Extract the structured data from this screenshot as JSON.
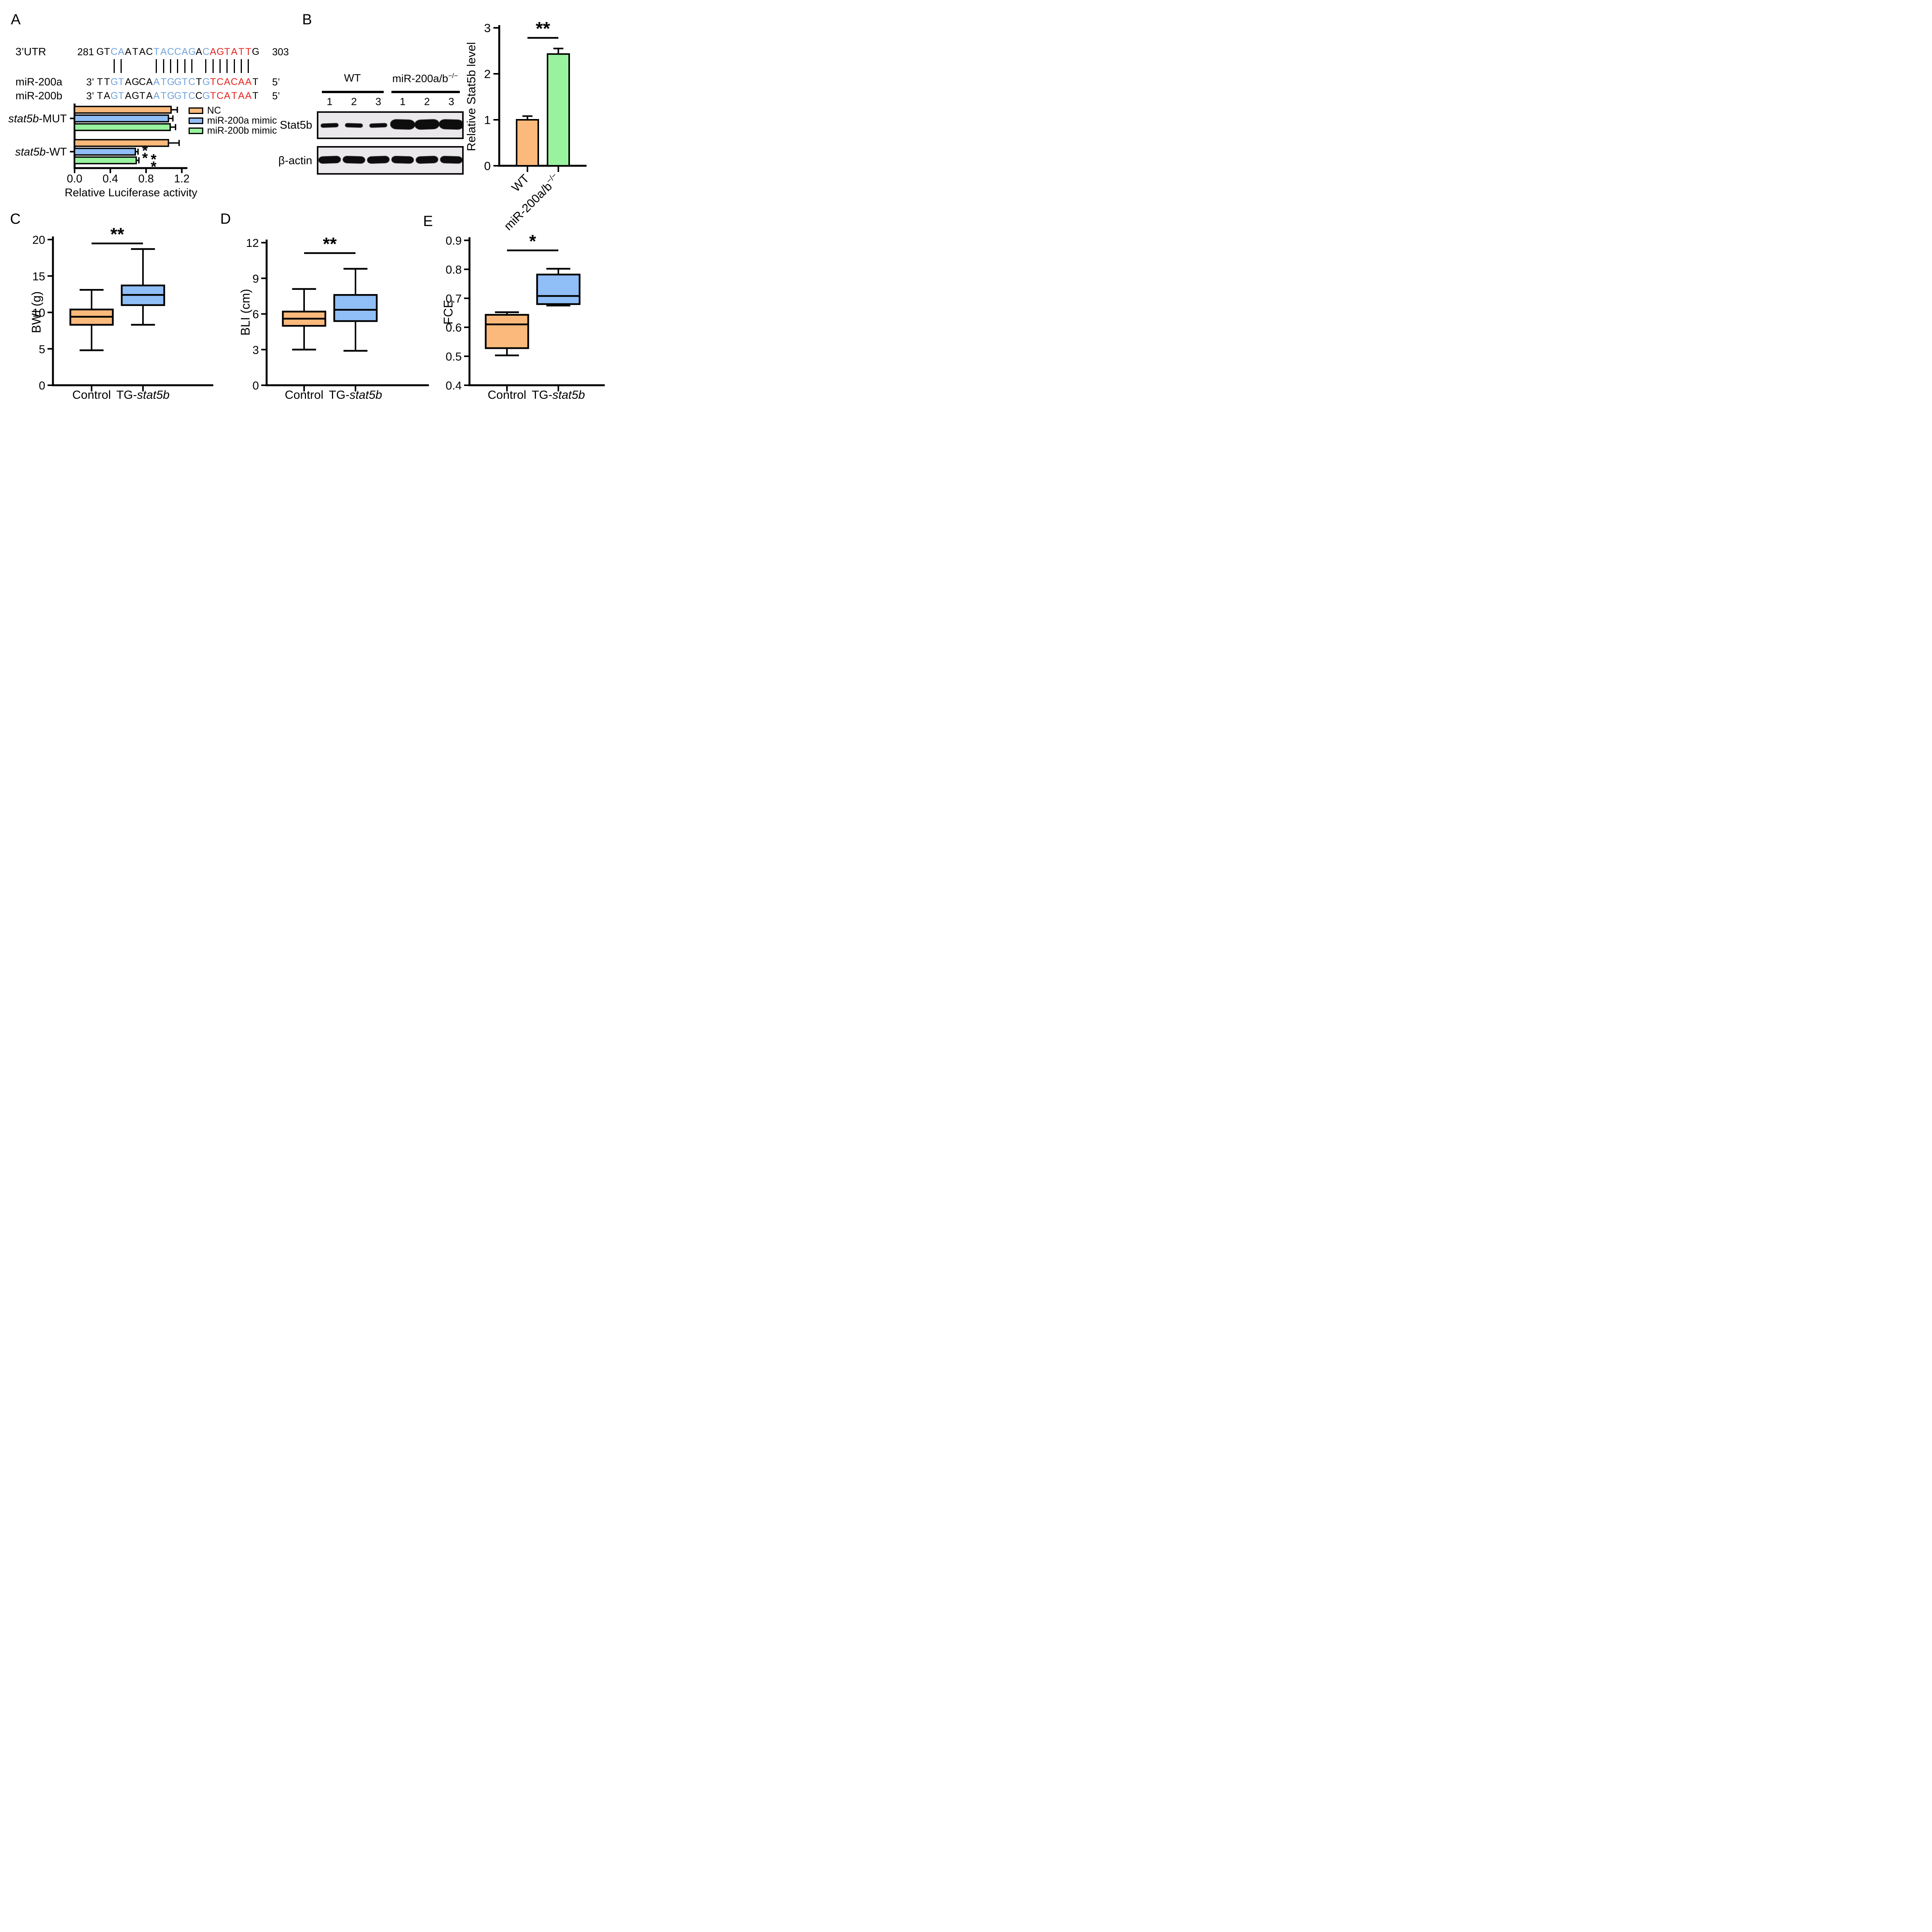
{
  "panel_labels": {
    "A": "A",
    "B": "B",
    "C": "C",
    "D": "D",
    "E": "E"
  },
  "colors": {
    "orange": "#FBB97B",
    "blue": "#90BEF6",
    "green": "#99F29E",
    "black": "#000000",
    "blot_background": "#EAE8EA",
    "seq_black": "#000000",
    "seq_blue": "#6FA3DC",
    "seq_red": "#E62420"
  },
  "panelA": {
    "alignment": {
      "rows": [
        {
          "name": "3’UTR",
          "prefix": "281",
          "seq": "GTCAATACTACCAGACAGTATTG",
          "suffix": "303"
        },
        {
          "name": "miR-200a",
          "prefix": "3’",
          "seq": "TTGTAGCAATGGTCTGTCACAAT",
          "suffix": "5’"
        },
        {
          "name": "miR-200b",
          "prefix": "3’",
          "seq": "TAGTAGTAATGGTCCGTCATAAT",
          "suffix": "5’"
        }
      ],
      "color_mask": "kkbbkkkkbbbbbbkbrrrrrrk",
      "match_mask": "00110000111111011111110",
      "letter_colors": {
        "k": "#000000",
        "b": "#6FA3DC",
        "r": "#E62420"
      }
    }
  },
  "panelB": {
    "blot": {
      "group_headers": [
        [
          {
            "t": "WT"
          }
        ],
        [
          {
            "t": "miR-200a/b"
          },
          {
            "t": "−/−",
            "sup": 1
          }
        ]
      ],
      "lanes": [
        "1",
        "2",
        "3",
        "1",
        "2",
        "3"
      ],
      "rows": [
        {
          "label": "Stat5b",
          "bands": [
            "thin",
            "thin",
            "thin",
            "thick",
            "thick",
            "thick"
          ]
        },
        {
          "label": "β-actin",
          "bands": [
            "med",
            "med",
            "med",
            "med",
            "med",
            "med"
          ]
        }
      ]
    }
  },
  "chart_data": [
    {
      "id": "A",
      "type": "bar-horizontal",
      "title": "",
      "xlabel": "Relative Luciferase activity",
      "ylabel": "",
      "xlim": [
        0,
        1.2
      ],
      "xticks": [
        0,
        0.4,
        0.8,
        1.2
      ],
      "grid": false,
      "legend_position": "right",
      "groups": [
        [
          {
            "t": "stat5b",
            "i": 1
          },
          {
            "t": "-MUT"
          }
        ],
        [
          {
            "t": "stat5b",
            "i": 1
          },
          {
            "t": "-WT"
          }
        ]
      ],
      "series": [
        {
          "name": "NC",
          "color": "orange",
          "values": [
            1.08,
            1.05
          ],
          "errors": [
            0.07,
            0.12
          ]
        },
        {
          "name": "miR-200a mimic",
          "color": "blue",
          "values": [
            1.05,
            0.68
          ],
          "errors": [
            0.05,
            0.03
          ]
        },
        {
          "name": "miR-200b mimic",
          "color": "green",
          "values": [
            1.07,
            0.69
          ],
          "errors": [
            0.06,
            0.03
          ]
        }
      ],
      "sig_marks": [
        {
          "series": 1,
          "group": 1,
          "text": "**"
        },
        {
          "series": 2,
          "group": 1,
          "text": "**"
        }
      ]
    },
    {
      "id": "B",
      "type": "bar",
      "title": "",
      "xlabel": "",
      "ylabel": "Relative Stat5b  level",
      "ylim": [
        0,
        3
      ],
      "yticks": [
        0,
        1,
        2,
        3
      ],
      "grid": false,
      "categories": [
        [
          {
            "t": "WT"
          }
        ],
        [
          {
            "t": "miR-200a/b"
          },
          {
            "t": "−/−",
            "sup": 1
          }
        ]
      ],
      "values": [
        1.0,
        2.43
      ],
      "errors": [
        0.08,
        0.12
      ],
      "colors": [
        "orange",
        "green"
      ],
      "sig": "**"
    },
    {
      "id": "C",
      "type": "box",
      "title": "",
      "xlabel": "",
      "ylabel": "BWI (g)",
      "ylim": [
        0,
        20
      ],
      "yticks": [
        0,
        5,
        10,
        15,
        20
      ],
      "grid": false,
      "categories": [
        [
          {
            "t": "Control"
          }
        ],
        [
          {
            "t": "TG-"
          },
          {
            "t": "stat5b",
            "i": 1
          }
        ]
      ],
      "colors": [
        "orange",
        "blue"
      ],
      "boxes": [
        {
          "min": 4.8,
          "q1": 8.3,
          "median": 9.4,
          "q3": 10.4,
          "max": 13.1
        },
        {
          "min": 8.3,
          "q1": 11.0,
          "median": 12.4,
          "q3": 13.7,
          "max": 18.7
        }
      ],
      "sig": "**"
    },
    {
      "id": "D",
      "type": "box",
      "title": "",
      "xlabel": "",
      "ylabel": "BLI (cm)",
      "ylim": [
        0,
        12
      ],
      "yticks": [
        0,
        3,
        6,
        9,
        12
      ],
      "grid": false,
      "categories": [
        [
          {
            "t": "Control"
          }
        ],
        [
          {
            "t": "TG-"
          },
          {
            "t": "stat5b",
            "i": 1
          }
        ]
      ],
      "colors": [
        "orange",
        "blue"
      ],
      "boxes": [
        {
          "min": 3.0,
          "q1": 5.0,
          "median": 5.6,
          "q3": 6.2,
          "max": 8.1
        },
        {
          "min": 2.9,
          "q1": 5.4,
          "median": 6.35,
          "q3": 7.6,
          "max": 9.8
        }
      ],
      "sig": "**"
    },
    {
      "id": "E",
      "type": "box",
      "title": "",
      "xlabel": "",
      "ylabel": "FCE",
      "ylim": [
        0.4,
        0.9
      ],
      "yticks": [
        0.4,
        0.5,
        0.6,
        0.7,
        0.8,
        0.9
      ],
      "grid": false,
      "categories": [
        [
          {
            "t": "Control"
          }
        ],
        [
          {
            "t": "TG-"
          },
          {
            "t": "stat5b",
            "i": 1
          }
        ]
      ],
      "colors": [
        "orange",
        "blue"
      ],
      "boxes": [
        {
          "min": 0.503,
          "q1": 0.528,
          "median": 0.61,
          "q3": 0.643,
          "max": 0.652
        },
        {
          "min": 0.675,
          "q1": 0.68,
          "median": 0.708,
          "q3": 0.782,
          "max": 0.802
        }
      ],
      "sig": "*"
    }
  ]
}
